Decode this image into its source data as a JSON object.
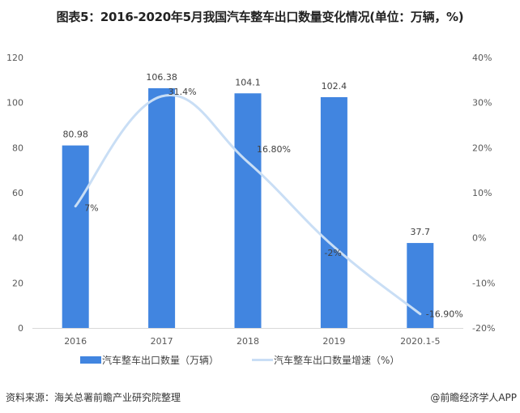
{
  "title": "图表5：2016-2020年5月我国汽车整车出口数量变化情况(单位：万辆，%)",
  "chart_data": {
    "type": "bar+line",
    "title": "图表5：2016-2020年5月我国汽车整车出口数量变化情况(单位：万辆，%)",
    "categories": [
      "2016",
      "2017",
      "2018",
      "2019",
      "2020.1-5"
    ],
    "series": [
      {
        "name": "汽车整车出口数量（万辆）",
        "type": "bar",
        "axis": "left",
        "values": [
          80.98,
          106.38,
          104.1,
          102.4,
          37.7
        ],
        "labels": [
          "80.98",
          "106.38",
          "104.1",
          "102.4",
          "37.7"
        ],
        "color": "#4185e0"
      },
      {
        "name": "汽车整车出口数量增速（%）",
        "type": "line",
        "axis": "right",
        "values": [
          7,
          31.4,
          16.8,
          -2,
          -16.9
        ],
        "labels": [
          "7%",
          "31.4%",
          "16.80%",
          "-2%",
          "-16.90%"
        ],
        "color": "#c9def5"
      }
    ],
    "left_axis": {
      "min": 0,
      "max": 120,
      "ticks": [
        "0",
        "20",
        "40",
        "60",
        "80",
        "100",
        "120"
      ]
    },
    "right_axis": {
      "min": -20,
      "max": 40,
      "ticks": [
        "-20%",
        "-10%",
        "0%",
        "10%",
        "20%",
        "30%",
        "40%"
      ]
    },
    "xlabel": "",
    "ylabel": "",
    "grid": false,
    "legend_position": "bottom"
  },
  "legend": {
    "bar_label": "汽车整车出口数量（万辆）",
    "line_label": "汽车整车出口数量增速（%）"
  },
  "footer": {
    "source": "资料来源：海关总署前瞻产业研究院整理",
    "credit": "@前瞻经济学人APP"
  }
}
